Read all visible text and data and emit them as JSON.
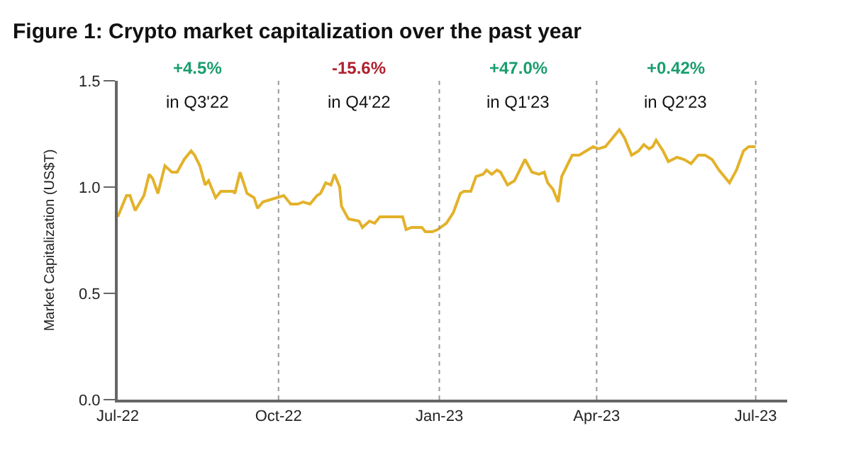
{
  "chart_data": {
    "type": "line",
    "title": "Figure 1: Crypto market capitalization over the past year",
    "ylabel": "Market Capitalization (US$T)",
    "x": [
      "2022-07-01",
      "2022-07-06",
      "2022-07-08",
      "2022-07-11",
      "2022-07-16",
      "2022-07-19",
      "2022-07-21",
      "2022-07-24",
      "2022-07-28",
      "2022-08-01",
      "2022-08-04",
      "2022-08-08",
      "2022-08-12",
      "2022-08-14",
      "2022-08-17",
      "2022-08-20",
      "2022-08-22",
      "2022-08-26",
      "2022-08-29",
      "2022-09-02",
      "2022-09-05",
      "2022-09-06",
      "2022-09-09",
      "2022-09-13",
      "2022-09-15",
      "2022-09-17",
      "2022-09-19",
      "2022-09-22",
      "2022-09-26",
      "2022-09-30",
      "2022-10-04",
      "2022-10-08",
      "2022-10-12",
      "2022-10-15",
      "2022-10-19",
      "2022-10-23",
      "2022-10-25",
      "2022-10-28",
      "2022-10-31",
      "2022-11-02",
      "2022-11-05",
      "2022-11-06",
      "2022-11-10",
      "2022-11-16",
      "2022-11-18",
      "2022-11-22",
      "2022-11-25",
      "2022-11-28",
      "2022-12-03",
      "2022-12-11",
      "2022-12-13",
      "2022-12-16",
      "2022-12-22",
      "2022-12-24",
      "2022-12-28",
      "2022-12-31",
      "2023-01-05",
      "2023-01-09",
      "2023-01-13",
      "2023-01-15",
      "2023-01-19",
      "2023-01-22",
      "2023-01-26",
      "2023-01-28",
      "2023-01-31",
      "2023-02-03",
      "2023-02-05",
      "2023-02-09",
      "2023-02-13",
      "2023-02-19",
      "2023-02-23",
      "2023-02-27",
      "2023-03-02",
      "2023-03-04",
      "2023-03-07",
      "2023-03-10",
      "2023-03-12",
      "2023-03-15",
      "2023-03-18",
      "2023-03-22",
      "2023-03-26",
      "2023-03-30",
      "2023-04-02",
      "2023-04-06",
      "2023-04-10",
      "2023-04-14",
      "2023-04-17",
      "2023-04-21",
      "2023-04-25",
      "2023-04-28",
      "2023-05-01",
      "2023-05-03",
      "2023-05-05",
      "2023-05-09",
      "2023-05-12",
      "2023-05-17",
      "2023-05-21",
      "2023-05-25",
      "2023-05-29",
      "2023-06-02",
      "2023-06-06",
      "2023-06-10",
      "2023-06-14",
      "2023-06-16",
      "2023-06-20",
      "2023-06-24",
      "2023-06-27",
      "2023-07-01"
    ],
    "series": [
      {
        "color": "#e3b22a",
        "values": [
          0.86,
          0.96,
          0.96,
          0.89,
          0.96,
          1.06,
          1.04,
          0.97,
          1.1,
          1.07,
          1.07,
          1.13,
          1.17,
          1.15,
          1.1,
          1.01,
          1.03,
          0.95,
          0.98,
          0.98,
          0.98,
          0.97,
          1.07,
          0.97,
          0.96,
          0.95,
          0.9,
          0.93,
          0.94,
          0.95,
          0.96,
          0.92,
          0.92,
          0.93,
          0.92,
          0.96,
          0.97,
          1.02,
          1.01,
          1.06,
          1.0,
          0.91,
          0.85,
          0.84,
          0.81,
          0.84,
          0.83,
          0.86,
          0.86,
          0.86,
          0.8,
          0.81,
          0.81,
          0.79,
          0.79,
          0.8,
          0.83,
          0.88,
          0.97,
          0.98,
          0.98,
          1.05,
          1.06,
          1.08,
          1.06,
          1.08,
          1.07,
          1.01,
          1.03,
          1.13,
          1.07,
          1.06,
          1.07,
          1.02,
          0.99,
          0.93,
          1.05,
          1.1,
          1.15,
          1.15,
          1.17,
          1.19,
          1.18,
          1.19,
          1.23,
          1.27,
          1.23,
          1.15,
          1.17,
          1.2,
          1.18,
          1.19,
          1.22,
          1.17,
          1.12,
          1.14,
          1.13,
          1.11,
          1.15,
          1.15,
          1.13,
          1.08,
          1.04,
          1.02,
          1.08,
          1.17,
          1.19,
          1.19
        ]
      }
    ],
    "xlim": [
      "2022-07-01",
      "2023-07-19"
    ],
    "xticks": [
      {
        "value": "2022-07-01",
        "label": "Jul-22"
      },
      {
        "value": "2022-10-01",
        "label": "Oct-22"
      },
      {
        "value": "2023-01-01",
        "label": "Jan-23"
      },
      {
        "value": "2023-04-01",
        "label": "Apr-23"
      },
      {
        "value": "2023-07-01",
        "label": "Jul-23"
      }
    ],
    "ylim": [
      0,
      1.5
    ],
    "yticks": [
      {
        "value": 0,
        "label": "0.0"
      },
      {
        "value": 0.5,
        "label": "0.5"
      },
      {
        "value": 1,
        "label": "1.0"
      },
      {
        "value": 1.5,
        "label": "1.5"
      }
    ],
    "ref_lines": [
      {
        "axis": "x",
        "value": "2022-10-01",
        "color": "#999999",
        "line_style": "dotted"
      },
      {
        "axis": "x",
        "value": "2023-01-01",
        "color": "#999999",
        "line_style": "dotted"
      },
      {
        "axis": "x",
        "value": "2023-04-01",
        "color": "#999999",
        "line_style": "dotted"
      },
      {
        "axis": "x",
        "value": "2023-07-01",
        "color": "#999999",
        "line_style": "dotted"
      }
    ],
    "annotations": [
      "+4.5%",
      "in Q3'22",
      "-15.6%",
      "in Q4'22",
      "+47.0%",
      "in Q1'23",
      "+0.42%",
      "in Q2'23"
    ],
    "marker": "none",
    "line_style": "solid"
  }
}
